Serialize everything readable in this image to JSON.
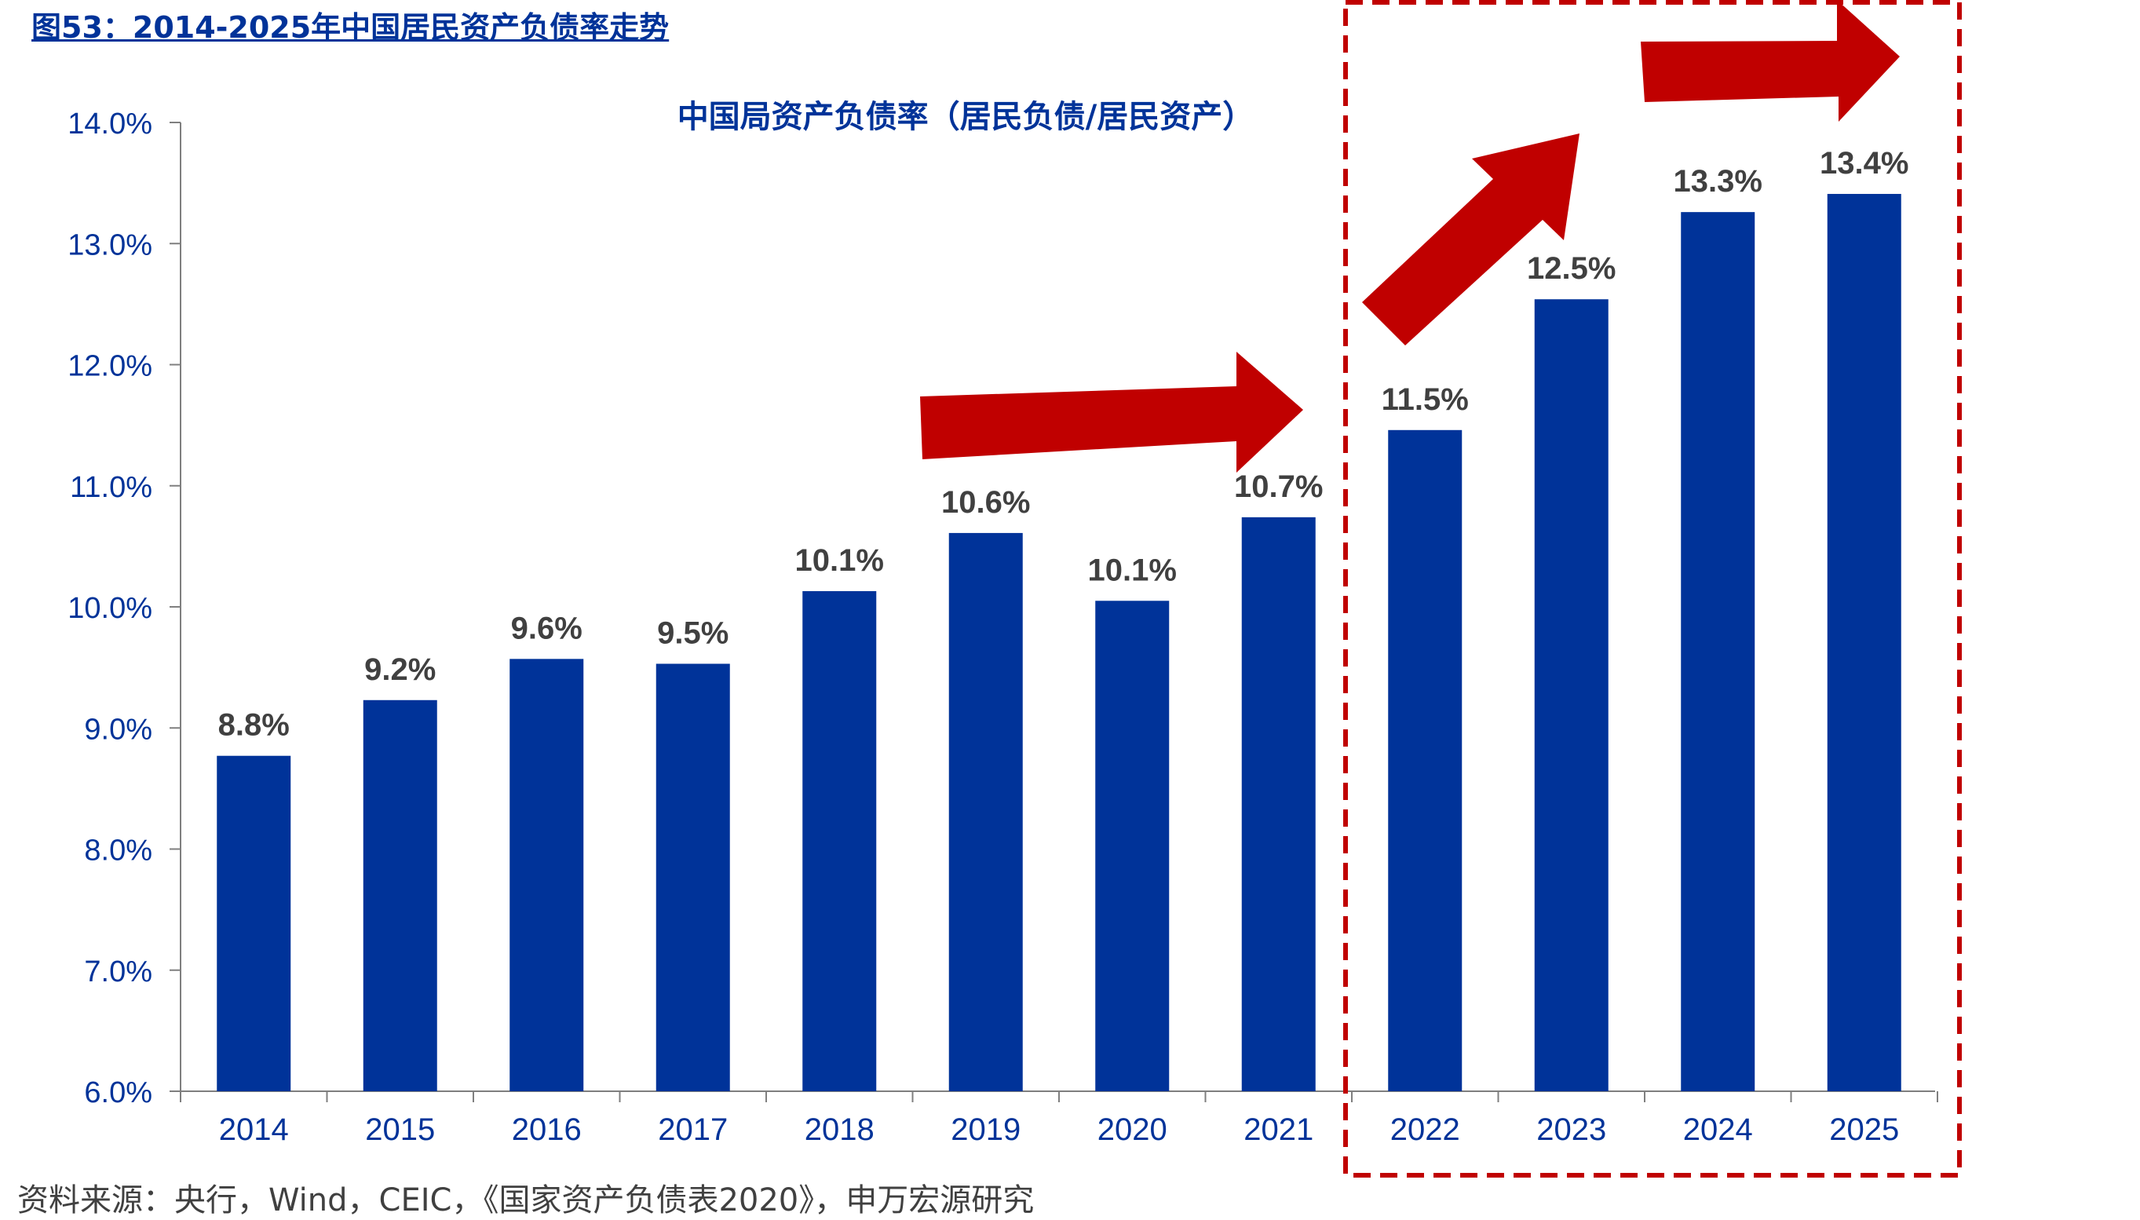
{
  "figure_title": "图53：2014-2025年中国居民资产负债率走势",
  "source_note": "资料来源：央行，Wind，CEIC，《国家资产负债表2020》，申万宏源研究",
  "colors": {
    "bar": "#003399",
    "arrow": "#C00000",
    "highlight_box": "#C00000",
    "axis_text": "#003399",
    "label_text": "#404040"
  },
  "chart_data": {
    "type": "bar",
    "title": "中国局资产负债率（居民负债/居民资产）",
    "xlabel": "",
    "ylabel": "",
    "categories": [
      "2014",
      "2015",
      "2016",
      "2017",
      "2018",
      "2019",
      "2020",
      "2021",
      "2022",
      "2023",
      "2024",
      "2025"
    ],
    "values": [
      8.77,
      9.23,
      9.57,
      9.53,
      10.13,
      10.61,
      10.05,
      10.74,
      11.46,
      12.54,
      13.26,
      13.41
    ],
    "data_labels": [
      "8.8%",
      "9.2%",
      "9.6%",
      "9.5%",
      "10.1%",
      "10.6%",
      "10.1%",
      "10.7%",
      "11.5%",
      "12.5%",
      "13.3%",
      "13.4%"
    ],
    "ylim": [
      6.0,
      14.0
    ],
    "yticks": [
      6.0,
      7.0,
      8.0,
      9.0,
      10.0,
      11.0,
      12.0,
      13.0,
      14.0
    ],
    "ytick_labels": [
      "6.0%",
      "7.0%",
      "8.0%",
      "9.0%",
      "10.0%",
      "11.0%",
      "12.0%",
      "13.0%",
      "14.0%"
    ],
    "grid": false,
    "legend": "none",
    "highlight_range": [
      "2022",
      "2025"
    ],
    "trend_arrows": 3
  }
}
